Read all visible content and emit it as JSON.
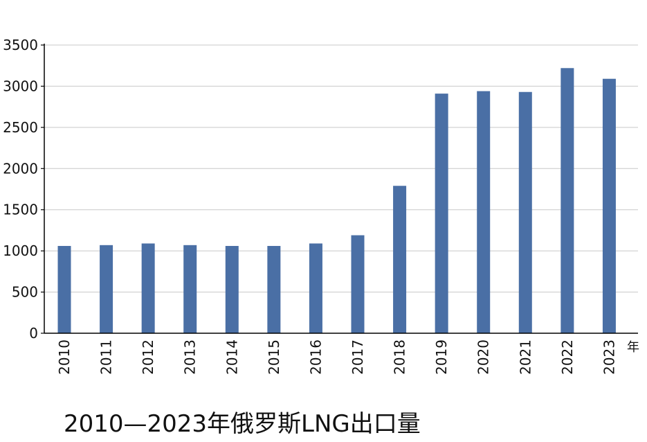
{
  "caption": "2010—2023年俄罗斯LNG出口量",
  "chart_data": {
    "type": "bar",
    "title": "2010—2023年俄罗斯LNG出口量",
    "xlabel": "年",
    "ylabel": "",
    "categories": [
      "2010",
      "2011",
      "2012",
      "2013",
      "2014",
      "2015",
      "2016",
      "2017",
      "2018",
      "2019",
      "2020",
      "2021",
      "2022",
      "2023"
    ],
    "values": [
      1060,
      1070,
      1090,
      1070,
      1060,
      1060,
      1090,
      1190,
      1790,
      2910,
      2940,
      2930,
      3220,
      3090
    ],
    "ylim": [
      0,
      3500
    ],
    "yticks": [
      0,
      500,
      1000,
      1500,
      2000,
      2500,
      3000,
      3500
    ],
    "grid": true,
    "legend": "none",
    "bar_color": "#4a6fa5",
    "grid_color": "#c8c8c8",
    "axis_color": "#000000"
  }
}
